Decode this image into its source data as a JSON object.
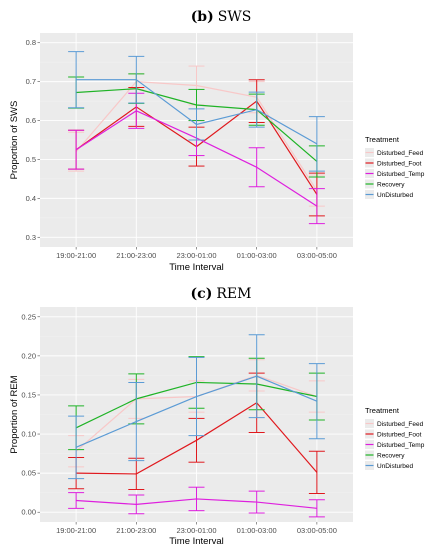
{
  "chart_data": [
    {
      "type": "line",
      "title_prefix": "(b)",
      "title_text": "SWS",
      "xlabel": "Time Interval",
      "ylabel": "Proportion of SWS",
      "ylim": [
        0.275,
        0.825
      ],
      "yticks": [
        0.3,
        0.4,
        0.5,
        0.6,
        0.7,
        0.8
      ],
      "ytick_labels": [
        "0.3",
        "0.4",
        "0.5",
        "0.6",
        "0.7",
        "0.8"
      ],
      "categories": [
        "19:00-21:00",
        "21:00-23:00",
        "23:00-01:00",
        "01:00-03:00",
        "03:00-05:00"
      ],
      "legend_title": "Treatment",
      "legend_position": "right",
      "grid": true,
      "series": [
        {
          "name": "Disturbed_Feed",
          "color": "#f8c8c8",
          "values": [
            0.52,
            0.7,
            0.69,
            0.66,
            0.42
          ],
          "err": [
            0.05,
            0.02,
            0.05,
            0.04,
            0.04
          ]
        },
        {
          "name": "Disturbed_Foot",
          "color": "#e0191e",
          "values": [
            0.525,
            0.635,
            0.533,
            0.65,
            0.41
          ],
          "err": [
            0.05,
            0.05,
            0.05,
            0.055,
            0.055
          ]
        },
        {
          "name": "Disturbed_Temp",
          "color": "#de1fde",
          "values": [
            0.525,
            0.625,
            0.555,
            0.48,
            0.38
          ],
          "err": [
            0.05,
            0.045,
            0.045,
            0.05,
            0.045
          ]
        },
        {
          "name": "Recovery",
          "color": "#1fb326",
          "values": [
            0.672,
            0.682,
            0.64,
            0.628,
            0.495
          ],
          "err": [
            0.04,
            0.038,
            0.04,
            0.04,
            0.04
          ]
        },
        {
          "name": "UnDisturbed",
          "color": "#5b9bd5",
          "values": [
            0.705,
            0.705,
            0.59,
            0.628,
            0.54
          ],
          "err": [
            0.072,
            0.06,
            0.04,
            0.045,
            0.07
          ]
        }
      ]
    },
    {
      "type": "line",
      "title_prefix": "(c)",
      "title_text": "REM",
      "xlabel": "Time Interval",
      "ylabel": "Proportion of REM",
      "ylim": [
        -0.0125,
        0.2625
      ],
      "yticks": [
        0.0,
        0.05,
        0.1,
        0.15,
        0.2,
        0.25
      ],
      "ytick_labels": [
        "0.00",
        "0.05",
        "0.10",
        "0.15",
        "0.20",
        "0.25"
      ],
      "categories": [
        "19:00-21:00",
        "21:00-23:00",
        "23:00-01:00",
        "01:00-03:00",
        "03:00-05:00"
      ],
      "legend_title": "Treatment",
      "legend_position": "right",
      "grid": true,
      "series": [
        {
          "name": "Disturbed_Feed",
          "color": "#f8c8c8",
          "values": [
            0.078,
            0.145,
            0.148,
            0.175,
            0.148
          ],
          "err": [
            0.02,
            0.025,
            0.02,
            0.02,
            0.02
          ]
        },
        {
          "name": "Disturbed_Foot",
          "color": "#e0191e",
          "values": [
            0.05,
            0.049,
            0.092,
            0.14,
            0.051
          ],
          "err": [
            0.02,
            0.02,
            0.028,
            0.038,
            0.027
          ]
        },
        {
          "name": "Disturbed_Temp",
          "color": "#de1fde",
          "values": [
            0.015,
            0.01,
            0.017,
            0.013,
            0.005
          ],
          "err": [
            0.01,
            0.012,
            0.015,
            0.014,
            0.011
          ]
        },
        {
          "name": "Recovery",
          "color": "#1fb326",
          "values": [
            0.108,
            0.145,
            0.166,
            0.164,
            0.148
          ],
          "err": [
            0.028,
            0.032,
            0.033,
            0.033,
            0.03
          ]
        },
        {
          "name": "UnDisturbed",
          "color": "#5b9bd5",
          "values": [
            0.083,
            0.116,
            0.148,
            0.174,
            0.142
          ],
          "err": [
            0.04,
            0.05,
            0.05,
            0.053,
            0.048
          ]
        }
      ]
    }
  ]
}
